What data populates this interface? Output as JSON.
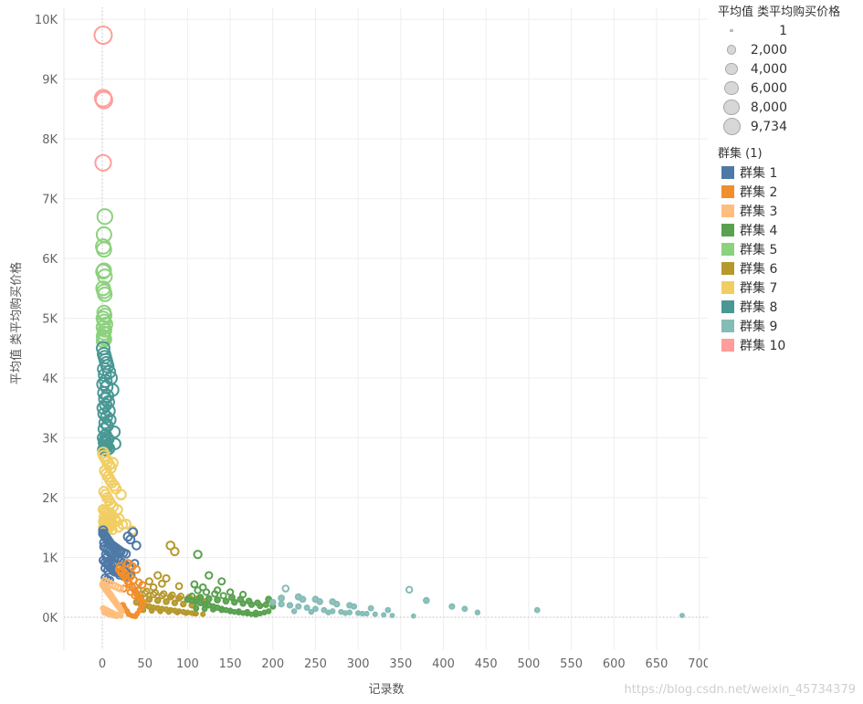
{
  "chart_data": {
    "type": "scatter",
    "xlabel": "记录数",
    "ylabel": "平均值 类平均购买价格",
    "xlim": [
      -45,
      710
    ],
    "ylim": [
      -550,
      10200
    ],
    "x_ticks": [
      0,
      50,
      100,
      150,
      200,
      250,
      300,
      350,
      400,
      450,
      500,
      550,
      600,
      650,
      700
    ],
    "y_ticks": [
      0,
      1000,
      2000,
      3000,
      4000,
      5000,
      6000,
      7000,
      8000,
      9000,
      10000
    ],
    "y_tick_labels": [
      "0K",
      "1K",
      "2K",
      "3K",
      "4K",
      "5K",
      "6K",
      "7K",
      "8K",
      "9K",
      "10K"
    ],
    "grid": true,
    "legend_position": "right",
    "size_legend": {
      "title": "平均值 类平均购买价格",
      "items": [
        {
          "label": "1",
          "value": 1
        },
        {
          "label": "2,000",
          "value": 2000
        },
        {
          "label": "4,000",
          "value": 4000
        },
        {
          "label": "6,000",
          "value": 6000
        },
        {
          "label": "8,000",
          "value": 8000
        },
        {
          "label": "9,734",
          "value": 9734
        }
      ]
    },
    "color_legend": {
      "title": "群集 (1)",
      "items": [
        {
          "label": "群集 1",
          "color": "#4e79a7"
        },
        {
          "label": "群集 2",
          "color": "#f28e2b"
        },
        {
          "label": "群集 3",
          "color": "#ffbe7d"
        },
        {
          "label": "群集 4",
          "color": "#59a14f"
        },
        {
          "label": "群集 5",
          "color": "#8cd17d"
        },
        {
          "label": "群集 6",
          "color": "#b6992d"
        },
        {
          "label": "群集 7",
          "color": "#f1ce63"
        },
        {
          "label": "群集 8",
          "color": "#499894"
        },
        {
          "label": "群集 9",
          "color": "#86bcb6"
        },
        {
          "label": "群集 10",
          "color": "#ff9d9a"
        }
      ]
    },
    "series": [
      {
        "name": "群集 10",
        "color": "#ff9d9a",
        "x": [
          1,
          1,
          2,
          1
        ],
        "y": [
          9734,
          8680,
          8650,
          7600
        ]
      },
      {
        "name": "群集 5",
        "color": "#8cd17d",
        "x": [
          3,
          2,
          1,
          2,
          2,
          1,
          3,
          1,
          2,
          3,
          2,
          3,
          1,
          2,
          4,
          1,
          3,
          2,
          1,
          2,
          3,
          1
        ],
        "y": [
          6700,
          6400,
          6200,
          6150,
          5800,
          5780,
          5700,
          5500,
          5450,
          5400,
          5100,
          5050,
          5000,
          4950,
          4900,
          4850,
          4800,
          4750,
          4700,
          4680,
          4650,
          4620
        ]
      },
      {
        "name": "群集 8",
        "color": "#499894",
        "x": [
          1,
          2,
          3,
          4,
          5,
          6,
          2,
          8,
          3,
          10,
          4,
          1,
          5,
          12,
          2,
          6,
          3,
          7,
          4,
          1,
          8,
          2,
          5,
          9,
          3,
          6,
          2,
          14,
          4,
          1,
          7,
          3,
          5,
          2,
          15,
          4,
          6,
          3,
          8,
          2,
          1,
          5
        ],
        "y": [
          4500,
          4400,
          4350,
          4300,
          4250,
          4200,
          4150,
          4100,
          4050,
          4000,
          3950,
          3900,
          3850,
          3800,
          3750,
          3700,
          3650,
          3600,
          3550,
          3500,
          3450,
          3400,
          3350,
          3300,
          3250,
          3200,
          3150,
          3100,
          3050,
          3000,
          2980,
          2960,
          2940,
          2920,
          2900,
          2880,
          2860,
          2840,
          2820,
          2810,
          2800,
          2790
        ]
      },
      {
        "name": "群集 7",
        "color": "#f1ce63",
        "x": [
          1,
          2,
          4,
          6,
          8,
          10,
          12,
          3,
          5,
          7,
          9,
          11,
          14,
          16,
          2,
          4,
          6,
          8,
          10,
          13,
          22,
          1,
          3,
          5,
          7,
          9,
          12,
          18,
          2,
          4,
          6,
          8,
          11,
          20,
          1,
          3,
          5,
          7,
          10,
          15,
          24,
          2,
          4,
          6,
          9,
          17,
          1,
          3,
          5,
          8,
          28,
          2,
          4,
          7,
          12,
          19,
          35
        ],
        "y": [
          2750,
          2700,
          2650,
          2600,
          2550,
          2500,
          2580,
          2450,
          2400,
          2350,
          2300,
          2250,
          2200,
          2150,
          2100,
          2050,
          2000,
          1950,
          1900,
          1850,
          2050,
          1800,
          1780,
          1760,
          1740,
          1720,
          1700,
          1800,
          1680,
          1660,
          1640,
          1620,
          1610,
          1650,
          1600,
          1590,
          1580,
          1570,
          1560,
          1650,
          1550,
          1540,
          1530,
          1520,
          1510,
          1600,
          1500,
          1495,
          1490,
          1485,
          1560,
          1480,
          1475,
          1470,
          1460,
          1500,
          1450
        ]
      },
      {
        "name": "群集 1",
        "color": "#4e79a7",
        "x": [
          1,
          2,
          3,
          4,
          5,
          6,
          7,
          8,
          9,
          10,
          12,
          14,
          16,
          18,
          20,
          22,
          25,
          28,
          30,
          33,
          36,
          40,
          2,
          4,
          6,
          8,
          10,
          12,
          15,
          18,
          21,
          24,
          27,
          32,
          38,
          1,
          3,
          5,
          7,
          9,
          11,
          13,
          17,
          19,
          23,
          26,
          29,
          34,
          3,
          6,
          9,
          12,
          15,
          20,
          25,
          30,
          5,
          10,
          15,
          20,
          2,
          8,
          14,
          1,
          4,
          7,
          11,
          3,
          6,
          13
        ],
        "y": [
          1400,
          1380,
          1360,
          1340,
          1320,
          1300,
          1280,
          1260,
          1240,
          1220,
          1200,
          1180,
          1160,
          1140,
          1120,
          1100,
          1080,
          1060,
          1350,
          1300,
          1420,
          1200,
          1180,
          1150,
          1120,
          1090,
          1060,
          1030,
          1000,
          970,
          940,
          910,
          880,
          850,
          900,
          950,
          920,
          890,
          860,
          830,
          800,
          780,
          760,
          740,
          720,
          700,
          680,
          700,
          660,
          640,
          620,
          800,
          750,
          700,
          680,
          720,
          1000,
          950,
          900,
          850,
          1250,
          1100,
          1000,
          1450,
          1050,
          900,
          850,
          820,
          780,
          760
        ]
      },
      {
        "name": "群集 6",
        "color": "#b6992d",
        "x": [
          40,
          45,
          50,
          55,
          60,
          65,
          70,
          75,
          80,
          85,
          90,
          95,
          100,
          105,
          110,
          45,
          55,
          65,
          75,
          85,
          95,
          105,
          50,
          60,
          70,
          80,
          90,
          100,
          110,
          120,
          48,
          58,
          68,
          78,
          88,
          98,
          108,
          118,
          42,
          52,
          62,
          72,
          82,
          92,
          102,
          112,
          80,
          85,
          65,
          75,
          55,
          70,
          90,
          60
        ],
        "y": [
          250,
          220,
          200,
          180,
          160,
          150,
          140,
          130,
          120,
          110,
          100,
          90,
          80,
          70,
          60,
          320,
          300,
          280,
          260,
          240,
          220,
          200,
          400,
          380,
          360,
          340,
          320,
          300,
          280,
          260,
          120,
          110,
          100,
          90,
          80,
          70,
          60,
          50,
          450,
          430,
          410,
          390,
          370,
          350,
          330,
          310,
          1200,
          1100,
          700,
          650,
          600,
          560,
          520,
          500
        ]
      },
      {
        "name": "群集 4",
        "color": "#59a14f",
        "x": [
          100,
          105,
          110,
          115,
          120,
          125,
          130,
          135,
          140,
          145,
          150,
          155,
          160,
          165,
          170,
          175,
          180,
          185,
          190,
          195,
          105,
          115,
          125,
          135,
          145,
          155,
          165,
          175,
          185,
          110,
          120,
          130,
          140,
          150,
          160,
          170,
          180,
          112,
          122,
          132,
          142,
          152,
          162,
          172,
          182,
          192,
          200,
          195,
          112,
          125,
          140,
          108,
          118,
          135,
          150,
          165
        ],
        "y": [
          300,
          280,
          260,
          240,
          220,
          200,
          180,
          160,
          140,
          120,
          100,
          90,
          80,
          70,
          60,
          50,
          40,
          60,
          80,
          100,
          350,
          330,
          310,
          290,
          270,
          250,
          230,
          210,
          190,
          150,
          140,
          130,
          120,
          110,
          100,
          90,
          80,
          450,
          420,
          390,
          360,
          330,
          300,
          270,
          240,
          210,
          180,
          300,
          1050,
          700,
          600,
          550,
          500,
          450,
          420,
          380
        ]
      },
      {
        "name": "群集 9",
        "color": "#86bcb6",
        "x": [
          200,
          210,
          220,
          230,
          240,
          250,
          260,
          270,
          280,
          290,
          300,
          310,
          320,
          330,
          340,
          365,
          380,
          410,
          425,
          440,
          510,
          680,
          215,
          235,
          255,
          275,
          295,
          315,
          335,
          225,
          245,
          265,
          285,
          305,
          210,
          230,
          250,
          270,
          290,
          360
        ],
        "y": [
          250,
          220,
          200,
          180,
          160,
          140,
          120,
          100,
          90,
          80,
          70,
          60,
          50,
          40,
          30,
          20,
          280,
          180,
          140,
          80,
          120,
          30,
          480,
          300,
          260,
          220,
          180,
          150,
          120,
          100,
          90,
          80,
          70,
          60,
          320,
          340,
          300,
          260,
          200,
          460
        ]
      },
      {
        "name": "群集 2",
        "color": "#f28e2b",
        "x": [
          20,
          22,
          25,
          28,
          30,
          32,
          35,
          38,
          40,
          42,
          45,
          48,
          24,
          26,
          29,
          31,
          34,
          36,
          39,
          41,
          44,
          46,
          21,
          23,
          27,
          33,
          37,
          43,
          47,
          30,
          35,
          40,
          25,
          33,
          38
        ],
        "y": [
          800,
          750,
          700,
          650,
          600,
          550,
          500,
          450,
          400,
          350,
          300,
          250,
          200,
          150,
          100,
          50,
          30,
          20,
          10,
          60,
          120,
          180,
          850,
          780,
          720,
          680,
          620,
          580,
          540,
          900,
          850,
          800,
          480,
          420,
          360
        ]
      },
      {
        "name": "群集 3",
        "color": "#ffbe7d",
        "x": [
          1,
          2,
          3,
          4,
          5,
          6,
          7,
          8,
          9,
          10,
          11,
          12,
          13,
          14,
          15,
          16,
          17,
          18,
          19,
          20,
          21,
          22,
          23,
          2,
          5,
          8,
          11,
          14,
          17,
          20,
          3,
          6,
          9,
          12,
          15,
          18,
          21,
          1,
          4,
          7,
          10,
          13,
          16,
          19,
          22
        ],
        "y": [
          550,
          520,
          500,
          480,
          460,
          440,
          420,
          400,
          380,
          360,
          340,
          320,
          300,
          280,
          260,
          240,
          220,
          200,
          180,
          160,
          140,
          120,
          100,
          80,
          60,
          40,
          30,
          20,
          10,
          50,
          600,
          580,
          560,
          540,
          520,
          500,
          480,
          150,
          130,
          110,
          90,
          70,
          50,
          30,
          20
        ]
      }
    ]
  },
  "watermark": "https://blog.csdn.net/weixin_45734379"
}
